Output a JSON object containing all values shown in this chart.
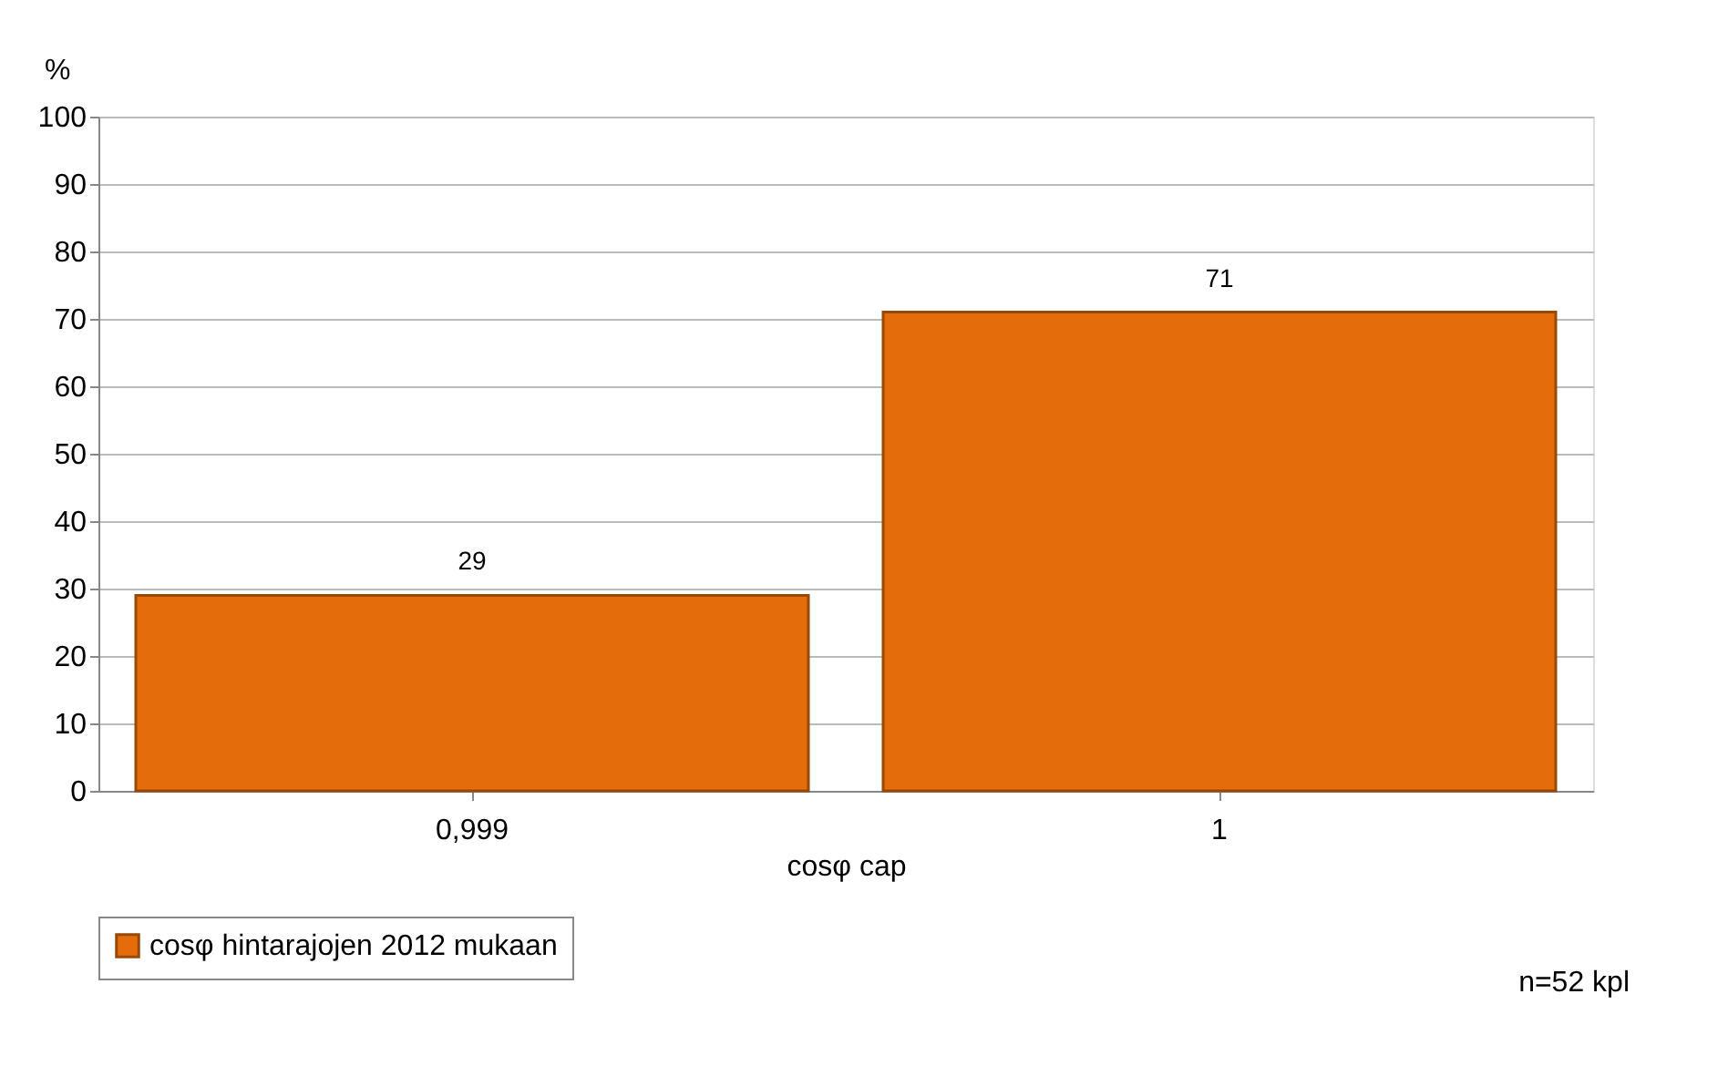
{
  "chart_data": {
    "type": "bar",
    "categories": [
      "0,999",
      "1"
    ],
    "series": [
      {
        "name": "cosφ hintarajojen 2012 mukaan",
        "color": "#e46c0a",
        "values": [
          29,
          71
        ]
      }
    ],
    "xlabel": "cosφ cap",
    "ylabel": "%",
    "ylim": [
      0,
      100
    ],
    "yticks": [
      0,
      10,
      20,
      30,
      40,
      50,
      60,
      70,
      80,
      90,
      100
    ],
    "grid": "y",
    "legend": "bottom",
    "data_labels": true,
    "annotations": [
      "n=52 kpl"
    ]
  }
}
